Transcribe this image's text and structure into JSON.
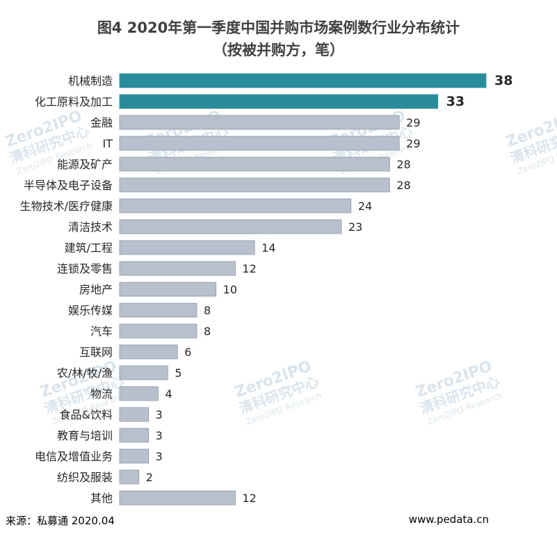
{
  "title_line1": "图4 2020年第一季度中国并购市场案例数行业分布统计",
  "title_line2": "（按被并购方，笔）",
  "source": "来源：私募通 2020.04",
  "website": "www.pedata.cn",
  "watermark": {
    "brand": "Zero2IPO",
    "cn_name": "清科研究中心",
    "en_name": "Zero2IPO Research"
  },
  "colors": {
    "highlight": "#2a8c9a",
    "normal": "#b7c0cc",
    "normal_stroke": "#8b97a6",
    "text": "#404040"
  },
  "chart_data": {
    "type": "bar",
    "orientation": "horizontal",
    "title": "图4 2020年第一季度中国并购市场案例数行业分布统计",
    "subtitle": "（按被并购方，笔）",
    "categories": [
      "机械制造",
      "化工原料及加工",
      "金融",
      "IT",
      "能源及矿产",
      "半导体及电子设备",
      "生物技术/医疗健康",
      "清洁技术",
      "建筑/工程",
      "连锁及零售",
      "房地产",
      "娱乐传媒",
      "汽车",
      "互联网",
      "农/林/牧/渔",
      "物流",
      "食品&饮料",
      "教育与培训",
      "电信及增值业务",
      "纺织及服装",
      "其他"
    ],
    "values": [
      38,
      33,
      29,
      29,
      28,
      28,
      24,
      23,
      14,
      12,
      10,
      8,
      8,
      6,
      5,
      4,
      3,
      3,
      3,
      2,
      12
    ],
    "highlight": [
      true,
      true,
      false,
      false,
      false,
      false,
      false,
      false,
      false,
      false,
      false,
      false,
      false,
      false,
      false,
      false,
      false,
      false,
      false,
      false,
      false
    ],
    "xlim": [
      0,
      38
    ],
    "grid": false,
    "legend": "none"
  }
}
